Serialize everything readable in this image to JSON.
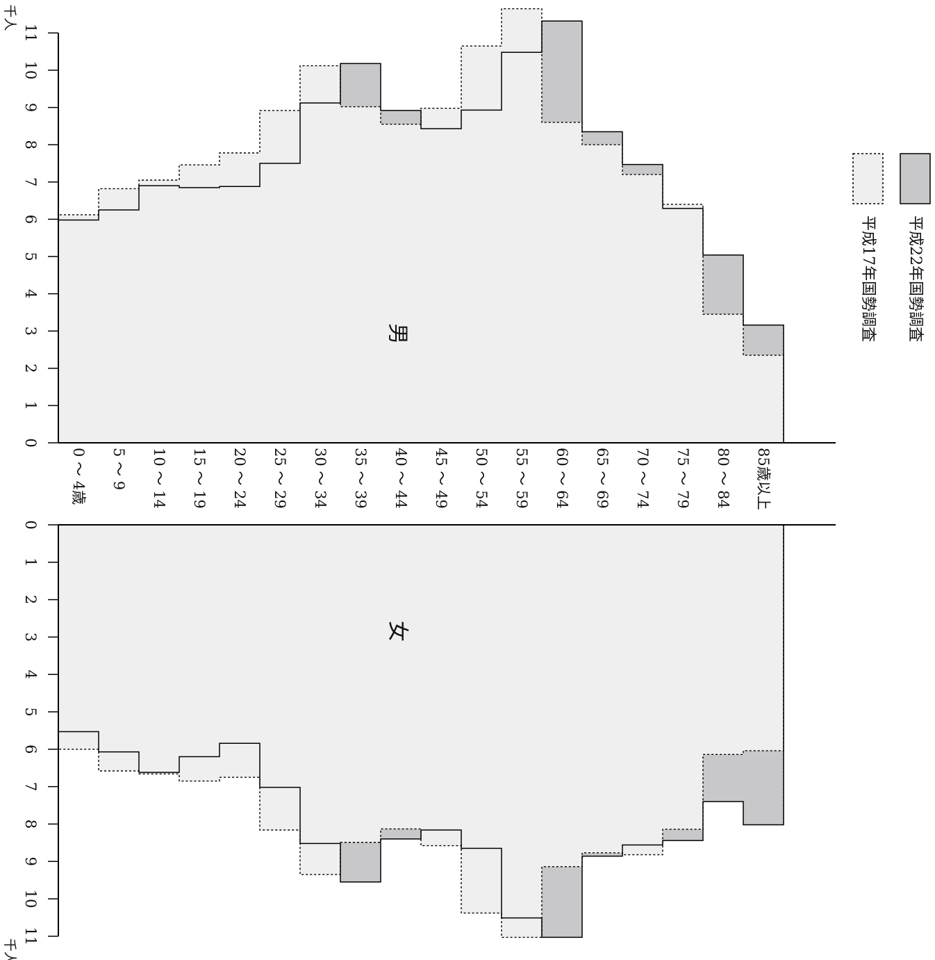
{
  "chart_data": {
    "type": "bar",
    "subtype": "population-pyramid-step",
    "orientation": "rotated-90-clockwise",
    "categories": [
      "0 ～ 4歳",
      "5 ～ 9",
      "10 ～ 14",
      "15 ～ 19",
      "20 ～ 24",
      "25 ～ 29",
      "30 ～ 34",
      "35 ～ 39",
      "40 ～ 44",
      "45 ～ 49",
      "50 ～ 54",
      "55 ～ 59",
      "60 ～ 64",
      "65 ～ 69",
      "70 ～ 74",
      "75 ～ 79",
      "80 ～ 84",
      "85歳以上"
    ],
    "panels": [
      {
        "label": "男",
        "unit": "千人",
        "axis_range": [
          0,
          11
        ],
        "ticks": [
          "0",
          "1",
          "2",
          "3",
          "4",
          "5",
          "6",
          "7",
          "8",
          "9",
          "10",
          "11"
        ],
        "series": [
          {
            "name": "平成22年国勢調査",
            "values": [
              5.98,
              6.25,
              6.9,
              6.85,
              6.88,
              7.5,
              9.12,
              10.18,
              8.92,
              8.43,
              8.93,
              10.48,
              11.32,
              8.35,
              7.47,
              6.29,
              5.04,
              3.16
            ]
          },
          {
            "name": "平成17年国勢調査",
            "values": [
              6.12,
              6.82,
              7.05,
              7.46,
              7.78,
              8.92,
              10.12,
              9.02,
              8.55,
              8.98,
              10.65,
              11.65,
              8.6,
              8.0,
              7.2,
              6.4,
              3.45,
              2.35
            ]
          }
        ]
      },
      {
        "label": "女",
        "unit": "千人",
        "axis_range": [
          0,
          11
        ],
        "ticks": [
          "0",
          "1",
          "2",
          "3",
          "4",
          "5",
          "6",
          "7",
          "8",
          "9",
          "10",
          "11"
        ],
        "series": [
          {
            "name": "平成22年国勢調査",
            "values": [
              5.53,
              6.07,
              6.62,
              6.2,
              5.84,
              7.02,
              8.52,
              9.55,
              8.4,
              8.16,
              8.65,
              10.51,
              11.03,
              8.86,
              8.56,
              8.44,
              7.4,
              8.02
            ]
          },
          {
            "name": "平成17年国勢調査",
            "values": [
              6.0,
              6.58,
              6.66,
              6.85,
              6.75,
              8.16,
              9.35,
              8.49,
              8.13,
              8.58,
              10.38,
              11.03,
              9.14,
              8.77,
              8.82,
              8.14,
              6.14,
              6.04
            ]
          }
        ]
      }
    ],
    "legend": {
      "position": "right",
      "items": [
        {
          "label": "平成22年国勢調査",
          "fill": "#c8c8ca",
          "stroke": "solid"
        },
        {
          "label": "平成17年国勢調査",
          "fill": "#efeff0",
          "stroke": "dotted"
        }
      ]
    },
    "colors": {
      "increase": "#c8c8ca",
      "base": "#efeff0",
      "axis": "#000000"
    },
    "grid": false
  }
}
